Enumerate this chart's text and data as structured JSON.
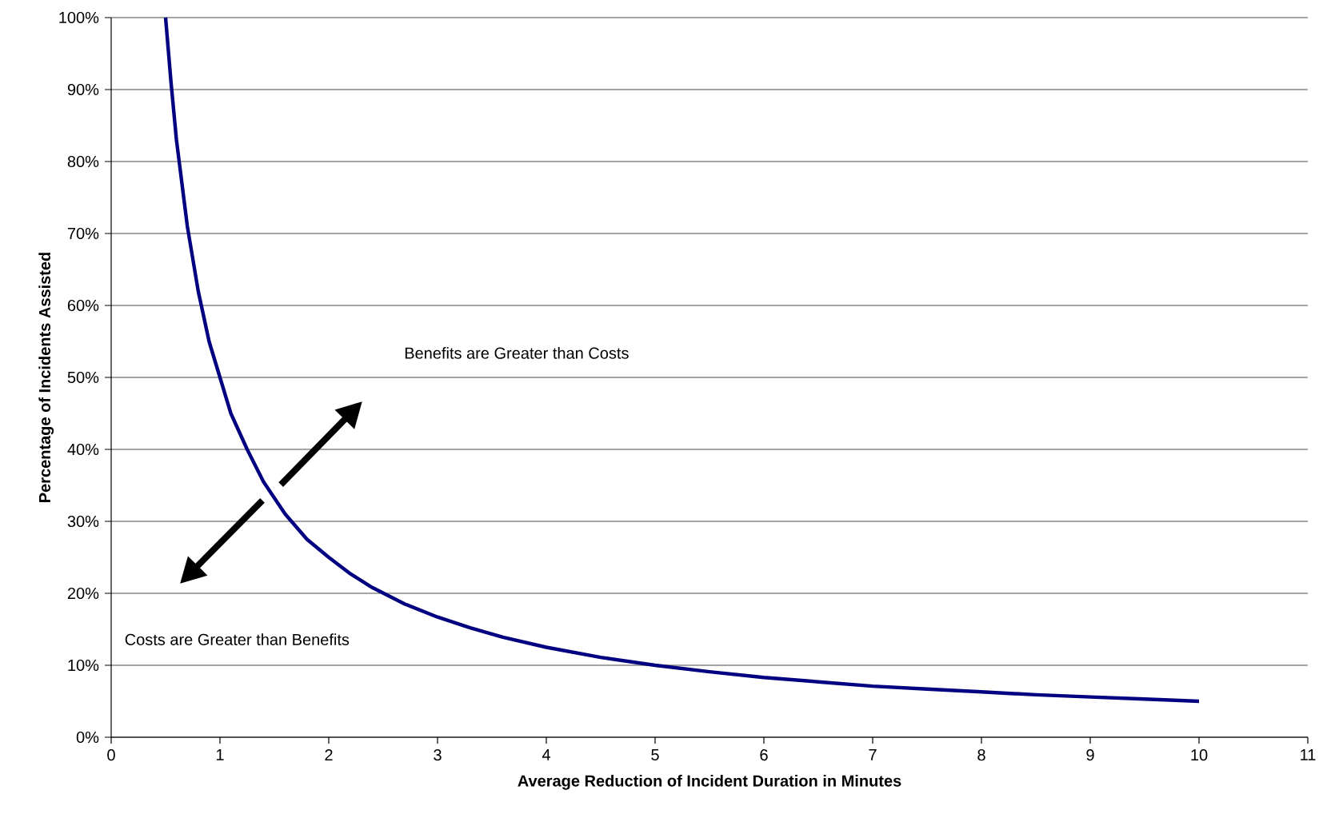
{
  "chart_data": {
    "type": "line",
    "xlabel": "Average Reduction of Incident Duration in Minutes",
    "ylabel": "Percentage of Incidents Assisted",
    "x": [
      0.5,
      0.55,
      0.6,
      0.7,
      0.8,
      0.9,
      1,
      1.1,
      1.25,
      1.4,
      1.6,
      1.8,
      2,
      2.2,
      2.4,
      2.7,
      3,
      3.3,
      3.6,
      4,
      4.5,
      5,
      5.5,
      6,
      6.5,
      7,
      7.5,
      8,
      8.5,
      9,
      9.5,
      10
    ],
    "series": [
      {
        "color": "#000080",
        "values": [
          100,
          91,
          83,
          71,
          62,
          55,
          50,
          45,
          40,
          35.5,
          31,
          27.5,
          25,
          22.7,
          20.8,
          18.5,
          16.7,
          15.2,
          13.9,
          12.5,
          11.1,
          10,
          9.1,
          8.3,
          7.7,
          7.1,
          6.7,
          6.3,
          5.9,
          5.6,
          5.3,
          5
        ]
      }
    ],
    "xlim": [
      0,
      11
    ],
    "xticks": [
      0,
      1,
      2,
      3,
      4,
      5,
      6,
      7,
      8,
      9,
      10,
      11
    ],
    "ylim": [
      0,
      100
    ],
    "yticks": [
      {
        "value": 0,
        "label": "0%"
      },
      {
        "value": 10,
        "label": "10%"
      },
      {
        "value": 20,
        "label": "20%"
      },
      {
        "value": 30,
        "label": "30%"
      },
      {
        "value": 40,
        "label": "40%"
      },
      {
        "value": 50,
        "label": "50%"
      },
      {
        "value": 60,
        "label": "60%"
      },
      {
        "value": 70,
        "label": "70%"
      },
      {
        "value": 80,
        "label": "80%"
      },
      {
        "value": 90,
        "label": "90%"
      },
      {
        "value": 100,
        "label": "100%"
      }
    ],
    "grid": "y",
    "marker": "none",
    "line_style": "solid",
    "annotations": [
      "Benefits are Greater than Costs",
      "Costs are Greater than Benefits"
    ]
  }
}
